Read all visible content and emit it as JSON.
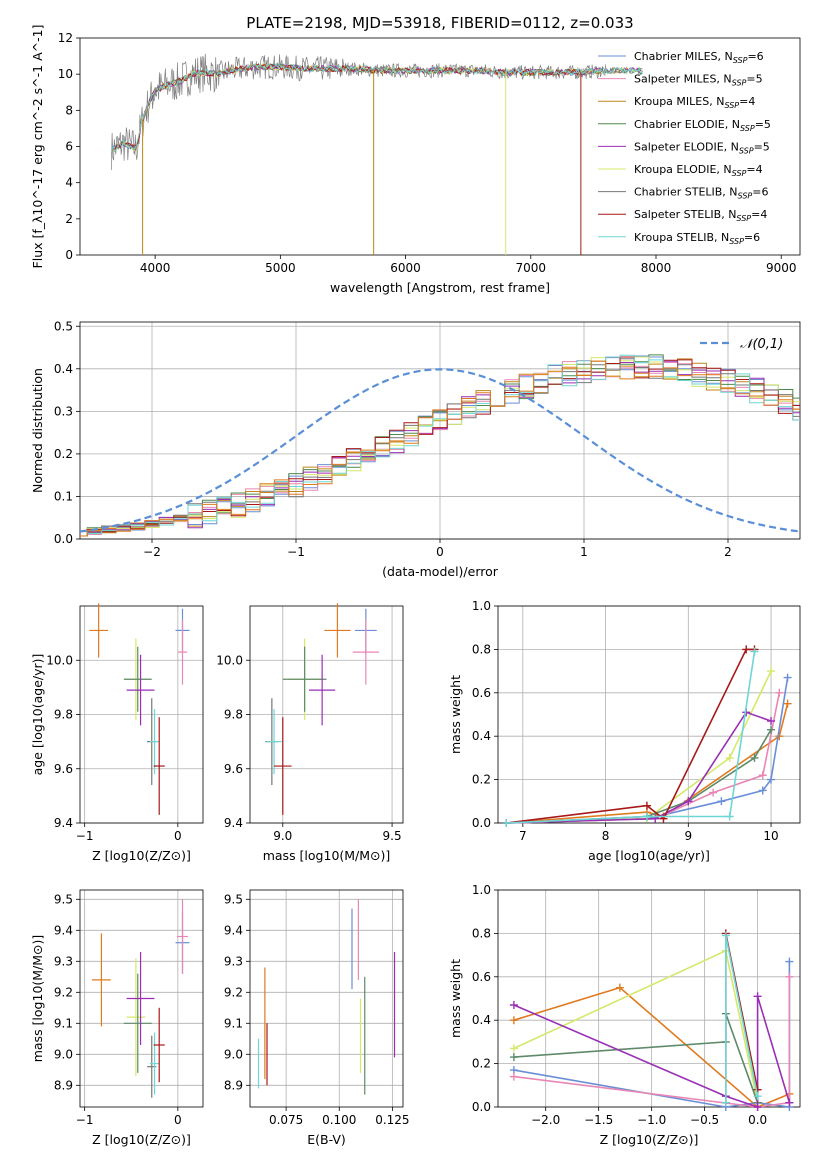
{
  "figure_title": "PLATE=2198, MJD=53918, FIBERID=0112, z=0.033",
  "legend_labels": [
    "Chabrier MILES, N_SSP=6",
    "Salpeter MILES, N_SSP=5",
    "Kroupa MILES, N_SSP=4",
    "Chabrier ELODIE, N_SSP=5",
    "Salpeter ELODIE, N_SSP=5",
    "Kroupa ELODIE, N_SSP=4",
    "Chabrier STELIB, N_SSP=6",
    "Salpeter STELIB, N_SSP=4",
    "Kroupa STELIB, N_SSP=6"
  ],
  "colors": {
    "chabrier_miles": "#6a8fd6",
    "salpeter_miles": "#e887b5",
    "kroupa_miles": "#c0861a",
    "chabrier_elodie": "#4d8a4d",
    "salpeter_elodie": "#9a2fb5",
    "kroupa_elodie": "#d4e86a",
    "chabrier_stelib": "#777777",
    "salpeter_stelib": "#a81818",
    "kroupa_stelib": "#6fd6d6",
    "orange": "#e07a1f",
    "sage": "#5f8a6a"
  },
  "chart_data": [
    {
      "type": "line",
      "name": "spectrum",
      "xlabel": "wavelength [Angstrom, rest frame]",
      "ylabel": "Flux [f_λ10^-17 erg cm^-2 s^-1 A^-1]",
      "xlim": [
        3400,
        9150
      ],
      "ylim": [
        0,
        12
      ],
      "xticks": [
        4000,
        5000,
        6000,
        7000,
        8000,
        9000
      ],
      "yticks": [
        0,
        2,
        4,
        6,
        8,
        10,
        12
      ],
      "grid": false,
      "legend": "top-right",
      "data_x": [
        3650,
        3700,
        3750,
        3800,
        3850,
        3900,
        3950,
        4000,
        4100,
        4200,
        4300,
        4400,
        4500,
        4600,
        4800,
        5000,
        5200,
        5400,
        5600,
        5800,
        6000,
        6200,
        6400,
        6600,
        6800,
        7000,
        7200,
        7400,
        7600,
        7800,
        8000,
        8200,
        8400,
        8600,
        8800,
        9000
      ],
      "data_y": [
        5.8,
        6.0,
        6.2,
        6.0,
        5.9,
        7.5,
        8.4,
        9.1,
        9.4,
        9.6,
        10.0,
        10.1,
        10.0,
        10.2,
        10.4,
        10.4,
        10.3,
        10.3,
        10.3,
        10.2,
        10.2,
        10.2,
        10.2,
        10.2,
        10.1,
        10.1,
        10.1,
        10.1,
        10.2,
        10.2,
        10.1,
        10.1,
        10.0,
        10.0,
        10.0,
        10.0
      ]
    },
    {
      "type": "histogram",
      "name": "residuals",
      "xlabel": "(data-model)/error",
      "ylabel": "Normed distribution",
      "xlim": [
        -2.5,
        2.5
      ],
      "ylim": [
        0,
        0.51
      ],
      "xticks": [
        -2,
        -1,
        0,
        1,
        2
      ],
      "yticks": [
        0.0,
        0.1,
        0.2,
        0.3,
        0.4,
        0.5
      ],
      "grid": true,
      "legend": "top-right",
      "legend_label": "𝒩(0,1)",
      "bin_width": 0.1,
      "bins_start": -2.55,
      "mean_heights": [
        0.016,
        0.018,
        0.022,
        0.026,
        0.03,
        0.036,
        0.042,
        0.048,
        0.055,
        0.063,
        0.071,
        0.081,
        0.091,
        0.102,
        0.114,
        0.126,
        0.14,
        0.154,
        0.168,
        0.183,
        0.199,
        0.214,
        0.23,
        0.246,
        0.262,
        0.278,
        0.293,
        0.308,
        0.322,
        0.336,
        0.348,
        0.36,
        0.371,
        0.38,
        0.388,
        0.395,
        0.4,
        0.404,
        0.406,
        0.406,
        0.404,
        0.4,
        0.395,
        0.388,
        0.38,
        0.371,
        0.36,
        0.348,
        0.336,
        0.322,
        0.308,
        0.293,
        0.278,
        0.262,
        0.246,
        0.23,
        0.214,
        0.199,
        0.183,
        0.168,
        0.154,
        0.14,
        0.126,
        0.114,
        0.102,
        0.091,
        0.081,
        0.071,
        0.063,
        0.055,
        0.048,
        0.042,
        0.036,
        0.03,
        0.026,
        0.022,
        0.018,
        0.016,
        0.014,
        0.012,
        0.01,
        0.009,
        0.008,
        0.007,
        0.006,
        0.005,
        0.004,
        0.004,
        0.003,
        0.003,
        0.002,
        0.002,
        0.002,
        0.001,
        0.001,
        0.001,
        0.001,
        0.001,
        0.001,
        0.001,
        0.001
      ]
    },
    {
      "type": "scatter",
      "name": "age_vs_Z",
      "xlabel": "Z [log10(Z/Z⊙)]",
      "ylabel": "age [log10(age/yr)]",
      "xlim": [
        -1.05,
        0.27
      ],
      "ylim": [
        9.4,
        10.2
      ],
      "xticks": [
        -1,
        0
      ],
      "yticks": [
        9.4,
        9.6,
        9.8,
        10.0
      ],
      "grid": true,
      "points": [
        {
          "x": -0.85,
          "y": 10.11,
          "xe": 0.2,
          "ye": 0.1,
          "c": "orange"
        },
        {
          "x": 0.05,
          "y": 10.11,
          "xe": 0.15,
          "ye": 0.08,
          "c": "chabrier_miles"
        },
        {
          "x": 0.05,
          "y": 10.03,
          "xe": 0.1,
          "ye": 0.12,
          "c": "salpeter_miles"
        },
        {
          "x": -0.45,
          "y": 9.93,
          "xe": 0.25,
          "ye": 0.15,
          "c": "kroupa_elodie"
        },
        {
          "x": -0.43,
          "y": 9.93,
          "xe": 0.3,
          "ye": 0.12,
          "c": "sage"
        },
        {
          "x": -0.4,
          "y": 9.89,
          "xe": 0.3,
          "ye": 0.13,
          "c": "salpeter_elodie"
        },
        {
          "x": -0.28,
          "y": 9.7,
          "xe": 0.1,
          "ye": 0.16,
          "c": "chabrier_stelib"
        },
        {
          "x": -0.25,
          "y": 9.7,
          "xe": 0.1,
          "ye": 0.12,
          "c": "kroupa_stelib"
        },
        {
          "x": -0.2,
          "y": 9.61,
          "xe": 0.12,
          "ye": 0.18,
          "c": "salpeter_stelib"
        }
      ]
    },
    {
      "type": "scatter",
      "name": "age_vs_mass",
      "xlabel": "mass [log10(M/M⊙)]",
      "ylabel": "",
      "xlim": [
        8.85,
        9.55
      ],
      "ylim": [
        9.4,
        10.2
      ],
      "xticks": [
        9.0,
        9.5
      ],
      "yticks": [
        9.4,
        9.6,
        9.8,
        10.0
      ],
      "grid": true,
      "points": [
        {
          "x": 9.25,
          "y": 10.11,
          "xe": 0.12,
          "ye": 0.1,
          "c": "orange"
        },
        {
          "x": 9.38,
          "y": 10.11,
          "xe": 0.1,
          "ye": 0.08,
          "c": "chabrier_miles"
        },
        {
          "x": 9.38,
          "y": 10.03,
          "xe": 0.12,
          "ye": 0.12,
          "c": "salpeter_miles"
        },
        {
          "x": 9.1,
          "y": 9.93,
          "xe": 0.15,
          "ye": 0.15,
          "c": "kroupa_elodie"
        },
        {
          "x": 9.1,
          "y": 9.93,
          "xe": 0.2,
          "ye": 0.12,
          "c": "sage"
        },
        {
          "x": 9.18,
          "y": 9.89,
          "xe": 0.12,
          "ye": 0.13,
          "c": "salpeter_elodie"
        },
        {
          "x": 8.95,
          "y": 9.7,
          "xe": 0.06,
          "ye": 0.16,
          "c": "chabrier_stelib"
        },
        {
          "x": 8.96,
          "y": 9.7,
          "xe": 0.07,
          "ye": 0.12,
          "c": "kroupa_stelib"
        },
        {
          "x": 9.0,
          "y": 9.61,
          "xe": 0.08,
          "ye": 0.18,
          "c": "salpeter_stelib"
        }
      ]
    },
    {
      "type": "line",
      "name": "mass_weight_vs_age",
      "xlabel": "age [log10(age/yr)]",
      "ylabel": "mass weight",
      "xlim": [
        6.7,
        10.35
      ],
      "ylim": [
        0,
        1.0
      ],
      "xticks": [
        7,
        8,
        9,
        10
      ],
      "yticks": [
        0.0,
        0.2,
        0.4,
        0.6,
        0.8,
        1.0
      ],
      "grid": true,
      "series": [
        {
          "c": "orange",
          "x": [
            6.8,
            8.5,
            8.7,
            10.1,
            10.2
          ],
          "y": [
            0.0,
            0.05,
            0.03,
            0.4,
            0.55
          ]
        },
        {
          "c": "chabrier_miles",
          "x": [
            6.8,
            8.5,
            9.4,
            9.9,
            10.0,
            10.2
          ],
          "y": [
            0.0,
            0.02,
            0.1,
            0.15,
            0.2,
            0.67
          ]
        },
        {
          "c": "salpeter_miles",
          "x": [
            6.8,
            8.6,
            9.3,
            9.9,
            10.1
          ],
          "y": [
            0.0,
            0.02,
            0.14,
            0.22,
            0.6
          ]
        },
        {
          "c": "kroupa_elodie",
          "x": [
            6.8,
            8.5,
            9.5,
            10.0
          ],
          "y": [
            0.0,
            0.02,
            0.3,
            0.7
          ]
        },
        {
          "c": "sage",
          "x": [
            6.8,
            8.5,
            9.0,
            9.8,
            10.0
          ],
          "y": [
            0.0,
            0.03,
            0.1,
            0.3,
            0.43
          ]
        },
        {
          "c": "salpeter_elodie",
          "x": [
            6.8,
            8.6,
            9.0,
            9.7,
            10.0
          ],
          "y": [
            0.0,
            0.02,
            0.1,
            0.51,
            0.47
          ]
        },
        {
          "c": "salpeter_stelib",
          "x": [
            6.8,
            8.5,
            8.7,
            9.7,
            9.8
          ],
          "y": [
            0.0,
            0.08,
            0.02,
            0.8,
            0.8
          ]
        },
        {
          "c": "kroupa_stelib",
          "x": [
            6.8,
            8.5,
            9.5,
            9.8
          ],
          "y": [
            0.0,
            0.03,
            0.03,
            0.79
          ]
        }
      ]
    },
    {
      "type": "scatter",
      "name": "mass_vs_Z",
      "xlabel": "Z [log10(Z/Z⊙)]",
      "ylabel": "mass [log10(M/M⊙)]",
      "xlim": [
        -1.05,
        0.27
      ],
      "ylim": [
        8.83,
        9.53
      ],
      "xticks": [
        -1,
        0
      ],
      "yticks": [
        8.9,
        9.0,
        9.1,
        9.2,
        9.3,
        9.4,
        9.5
      ],
      "grid": true,
      "points": [
        {
          "x": -0.82,
          "y": 9.24,
          "xe": 0.2,
          "ye": 0.15,
          "c": "orange"
        },
        {
          "x": 0.05,
          "y": 9.36,
          "xe": 0.15,
          "ye": 0.1,
          "c": "chabrier_miles"
        },
        {
          "x": 0.05,
          "y": 9.38,
          "xe": 0.12,
          "ye": 0.12,
          "c": "salpeter_miles"
        },
        {
          "x": -0.45,
          "y": 9.12,
          "xe": 0.2,
          "ye": 0.19,
          "c": "kroupa_elodie"
        },
        {
          "x": -0.43,
          "y": 9.1,
          "xe": 0.3,
          "ye": 0.16,
          "c": "sage"
        },
        {
          "x": -0.4,
          "y": 9.18,
          "xe": 0.3,
          "ye": 0.15,
          "c": "salpeter_elodie"
        },
        {
          "x": -0.28,
          "y": 8.96,
          "xe": 0.1,
          "ye": 0.1,
          "c": "chabrier_stelib"
        },
        {
          "x": -0.25,
          "y": 8.97,
          "xe": 0.1,
          "ye": 0.1,
          "c": "kroupa_stelib"
        },
        {
          "x": -0.2,
          "y": 9.03,
          "xe": 0.12,
          "ye": 0.12,
          "c": "salpeter_stelib"
        }
      ]
    },
    {
      "type": "scatter",
      "name": "mass_vs_EBV",
      "xlabel": "E(B-V)",
      "ylabel": "",
      "xlim": [
        0.058,
        0.13
      ],
      "ylim": [
        8.83,
        9.53
      ],
      "xticks": [
        0.075,
        0.1,
        0.125
      ],
      "yticks": [
        8.9,
        9.0,
        9.1,
        9.2,
        9.3,
        9.4,
        9.5
      ],
      "grid": true,
      "points": [
        {
          "x": 0.065,
          "y": 9.1,
          "ye": 0.18,
          "c": "orange"
        },
        {
          "x": 0.066,
          "y": 9.0,
          "ye": 0.1,
          "c": "salpeter_stelib"
        },
        {
          "x": 0.062,
          "y": 8.97,
          "ye": 0.08,
          "c": "kroupa_stelib"
        },
        {
          "x": 0.106,
          "y": 9.34,
          "ye": 0.13,
          "c": "chabrier_miles"
        },
        {
          "x": 0.109,
          "y": 9.37,
          "ye": 0.13,
          "c": "salpeter_miles"
        },
        {
          "x": 0.11,
          "y": 9.06,
          "ye": 0.12,
          "c": "kroupa_elodie"
        },
        {
          "x": 0.112,
          "y": 9.06,
          "ye": 0.19,
          "c": "sage"
        },
        {
          "x": 0.126,
          "y": 9.16,
          "ye": 0.17,
          "c": "salpeter_elodie"
        }
      ]
    },
    {
      "type": "line",
      "name": "mass_weight_vs_Z",
      "xlabel": "Z [log10(Z/Z⊙)]",
      "ylabel": "mass weight",
      "xlim": [
        -2.45,
        0.4
      ],
      "ylim": [
        0,
        1.0
      ],
      "xticks": [
        -2.0,
        -1.5,
        -1.0,
        -0.5,
        0.0
      ],
      "yticks": [
        0.0,
        0.2,
        0.4,
        0.6,
        0.8,
        1.0
      ],
      "grid": true,
      "series": [
        {
          "c": "orange",
          "x": [
            -2.3,
            -1.3,
            0.0,
            0.3
          ],
          "y": [
            0.4,
            0.55,
            0.0,
            0.06
          ]
        },
        {
          "c": "chabrier_miles",
          "x": [
            -2.3,
            -0.3,
            0.0,
            0.3,
            0.3
          ],
          "y": [
            0.17,
            0.0,
            0.02,
            0.0,
            0.67
          ]
        },
        {
          "c": "salpeter_miles",
          "x": [
            -2.3,
            0.0,
            0.3,
            0.3
          ],
          "y": [
            0.14,
            0.0,
            0.02,
            0.6
          ]
        },
        {
          "c": "kroupa_elodie",
          "x": [
            -2.3,
            -0.3,
            0.0
          ],
          "y": [
            0.27,
            0.72,
            0.02
          ]
        },
        {
          "c": "sage",
          "x": [
            -2.3,
            -0.3,
            -0.3,
            0.0
          ],
          "y": [
            0.23,
            0.3,
            0.43,
            0.02
          ]
        },
        {
          "c": "salpeter_elodie",
          "x": [
            -2.3,
            -0.3,
            0.0,
            0.0,
            0.3
          ],
          "y": [
            0.47,
            0.05,
            0.0,
            0.51,
            0.02
          ]
        },
        {
          "c": "salpeter_stelib",
          "x": [
            -0.3,
            -0.3,
            0.0
          ],
          "y": [
            0.02,
            0.8,
            0.08
          ]
        },
        {
          "c": "kroupa_stelib",
          "x": [
            -0.3,
            -0.3,
            0.0
          ],
          "y": [
            0.02,
            0.79,
            0.05
          ]
        }
      ]
    }
  ]
}
